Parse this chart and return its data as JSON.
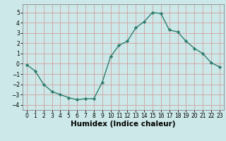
{
  "x": [
    0,
    1,
    2,
    3,
    4,
    5,
    6,
    7,
    8,
    9,
    10,
    11,
    12,
    13,
    14,
    15,
    16,
    17,
    18,
    19,
    20,
    21,
    22,
    23
  ],
  "y": [
    -0.1,
    -0.7,
    -2.0,
    -2.7,
    -3.0,
    -3.3,
    -3.5,
    -3.4,
    -3.4,
    -1.8,
    0.7,
    1.8,
    2.2,
    3.5,
    4.1,
    5.0,
    4.9,
    3.3,
    3.1,
    2.2,
    1.5,
    1.0,
    0.1,
    -0.3
  ],
  "line_color": "#2e7d6e",
  "marker": "D",
  "marker_size": 2.2,
  "bg_color": "#cce8e8",
  "grid_color": "#b8d4d4",
  "xlabel": "Humidex (Indice chaleur)",
  "ylim": [
    -4.5,
    5.8
  ],
  "xlim": [
    -0.5,
    23.5
  ],
  "yticks": [
    -4,
    -3,
    -2,
    -1,
    0,
    1,
    2,
    3,
    4,
    5
  ],
  "xticks": [
    0,
    1,
    2,
    3,
    4,
    5,
    6,
    7,
    8,
    9,
    10,
    11,
    12,
    13,
    14,
    15,
    16,
    17,
    18,
    19,
    20,
    21,
    22,
    23
  ],
  "tick_fontsize": 5.5,
  "xlabel_fontsize": 7.5,
  "line_width": 1.0
}
